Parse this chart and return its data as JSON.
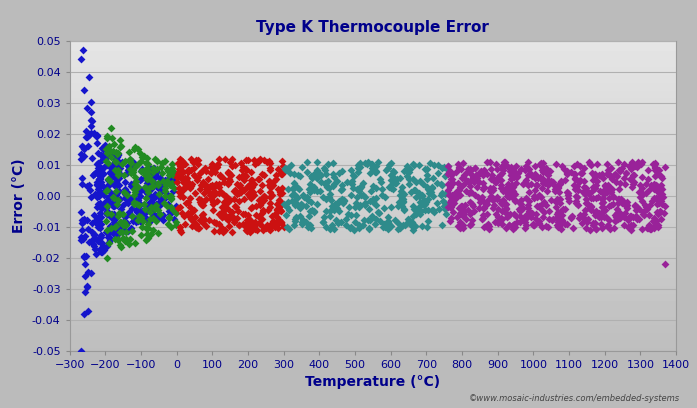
{
  "title": "Type K Thermocouple Error",
  "xlabel": "Temperature (°C)",
  "ylabel": "Error (°C)",
  "xlim": [
    -300,
    1400
  ],
  "ylim": [
    -0.05,
    0.05
  ],
  "xticks": [
    -300,
    -200,
    -100,
    0,
    100,
    200,
    300,
    400,
    500,
    600,
    700,
    800,
    900,
    1000,
    1100,
    1200,
    1300,
    1400
  ],
  "yticks": [
    -0.05,
    -0.04,
    -0.03,
    -0.02,
    -0.01,
    0.0,
    0.01,
    0.02,
    0.03,
    0.04,
    0.05
  ],
  "copyright": "©www.mosaic-industries.com/embedded-systems",
  "outer_bg": "#bbbbbb",
  "plot_bg_light": "#e2e2e2",
  "plot_bg_dark": "#c0c0c0",
  "colors": {
    "blue": "#1515cc",
    "green": "#228B22",
    "red": "#cc1111",
    "teal": "#2e8b8b",
    "purple": "#992299"
  },
  "title_color": "#00008B",
  "axis_label_color": "#00008B",
  "tick_color": "#00008B",
  "grid_color": "#b0b0b0",
  "marker": "D",
  "markersize": 4,
  "seed": 42
}
